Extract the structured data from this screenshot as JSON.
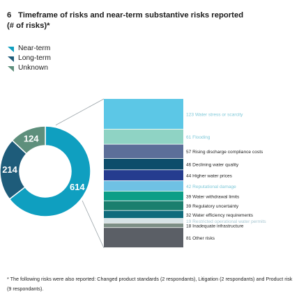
{
  "title": {
    "number": "6",
    "text": "Timeframe of risks and near-term substantive risks reported",
    "subtext": "(# of risks)*"
  },
  "colors": {
    "near_term": "#0f9fc0",
    "long_term": "#1e5c7a",
    "unknown": "#5e8f7c",
    "bar_text": "#222222",
    "bar_text_light": "#7ec8d8",
    "bar_text_mid": "#6a8fa3"
  },
  "chart_data": [
    {
      "type": "pie",
      "variant": "donut",
      "series": [
        {
          "name": "Near-term",
          "value": 614,
          "label": "614",
          "color": "#0f9fc0"
        },
        {
          "name": "Long-term",
          "value": 214,
          "label": "214",
          "color": "#1e5c7a"
        },
        {
          "name": "Unknown",
          "value": 124,
          "label": "124",
          "color": "#5e8f7c"
        }
      ],
      "legend": {
        "placement": "top-left",
        "entries": [
          "Near-term",
          "Long-term",
          "Unknown"
        ]
      }
    },
    {
      "type": "bar",
      "variant": "stacked-column",
      "categories": [
        "Water stress or scarcity",
        "Flooding",
        "Rising discharge compliance costs",
        "Declining water quality",
        "Higher water prices",
        "Reputational damage",
        "Water withdrawal limits",
        "Regulatory uncertainty",
        "Water efficiency requirements",
        "Restricted operational water permits",
        "Inadequate infrastructure",
        "Other risks"
      ],
      "values": [
        123,
        61,
        57,
        46,
        44,
        42,
        39,
        39,
        32,
        19,
        18,
        81
      ],
      "labels": [
        "123",
        "61",
        "57",
        "46",
        "44",
        "42",
        "39",
        "39",
        "32",
        "19",
        "18",
        "81"
      ],
      "colors": [
        "#5cc7e6",
        "#8fd3c4",
        "#5c6f99",
        "#0d4d6b",
        "#253c8f",
        "#6fc1e4",
        "#0c9e87",
        "#1a7f6e",
        "#0f6b7c",
        "#d7e3e6",
        "#7d8f86",
        "#5b5f66"
      ],
      "label_colors": [
        "#7ec8d8",
        "#7ec8d8",
        "#222222",
        "#222222",
        "#222222",
        "#7ec8d8",
        "#222222",
        "#222222",
        "#222222",
        "#a8c7d2",
        "#222222",
        "#222222"
      ],
      "total": 614
    }
  ],
  "footnote": "* The following risks were also reported: Changed product standards (2 respondants), Litigation (2 respondants) and Product risk (9 respondants)."
}
